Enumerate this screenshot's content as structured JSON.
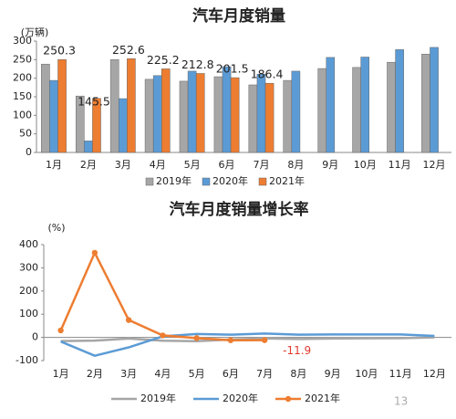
{
  "chart_data": [
    {
      "type": "bar",
      "title": "汽车月度销量",
      "unit_label": "(万辆)",
      "categories": [
        "1月",
        "2月",
        "3月",
        "4月",
        "5月",
        "6月",
        "7月",
        "8月",
        "9月",
        "10月",
        "11月",
        "12月"
      ],
      "series": [
        {
          "name": "2019年",
          "color": "#a6a6a6",
          "values": [
            238,
            152,
            250,
            197,
            192,
            204,
            182,
            194,
            226,
            229,
            243,
            265
          ]
        },
        {
          "name": "2020年",
          "color": "#5b9bd5",
          "values": [
            194,
            31,
            145,
            207,
            219,
            231,
            211,
            219,
            256,
            257,
            277,
            283
          ]
        },
        {
          "name": "2021年",
          "color": "#ed7d31",
          "values": [
            250.3,
            145.5,
            252.6,
            225.2,
            212.8,
            201.5,
            186.4,
            null,
            null,
            null,
            null,
            null
          ],
          "data_labels": true
        }
      ],
      "ylim": [
        0,
        300
      ],
      "yticks": [
        0,
        50,
        100,
        150,
        200,
        250,
        300
      ],
      "legend": "bottom"
    },
    {
      "type": "line",
      "title": "汽车月度销量增长率",
      "unit_label": "(%)",
      "categories": [
        "1月",
        "2月",
        "3月",
        "4月",
        "5月",
        "6月",
        "7月",
        "8月",
        "9月",
        "10月",
        "11月",
        "12月"
      ],
      "series": [
        {
          "name": "2019年",
          "color": "#a6a6a6",
          "markers": false,
          "values": [
            -15.8,
            -13.8,
            -5.2,
            -14.6,
            -16.4,
            -9.6,
            -4.3,
            -6.9,
            -5.2,
            -4.0,
            -3.6,
            0.1
          ]
        },
        {
          "name": "2020年",
          "color": "#5b9bd5",
          "markers": false,
          "values": [
            -18,
            -79,
            -43,
            4.4,
            14.5,
            11.6,
            16.4,
            11.6,
            12.8,
            12.5,
            12.6,
            6.4
          ]
        },
        {
          "name": "2021年",
          "color": "#ed7d31",
          "markers": true,
          "values": [
            30,
            365,
            75,
            8.6,
            -3.1,
            -12.4,
            -11.9,
            null,
            null,
            null,
            null,
            null
          ]
        }
      ],
      "annotations": [
        {
          "text": "-11.9",
          "series": "2021年",
          "color": "#e03a2f"
        }
      ],
      "ylim": [
        -100,
        400
      ],
      "yticks": [
        -100,
        0,
        100,
        200,
        300,
        400
      ],
      "legend": "bottom"
    }
  ],
  "page_number": "13"
}
